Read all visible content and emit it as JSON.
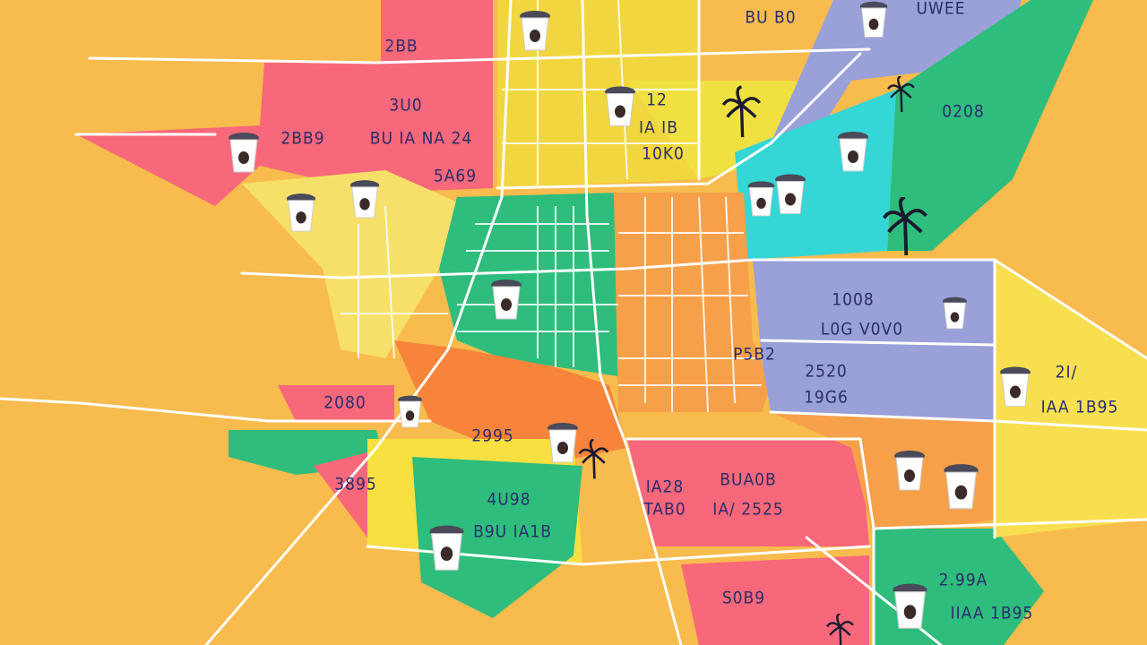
{
  "labels": [
    "2BB",
    "3U0",
    "2BB9",
    "BU IA NA 24",
    "5A69",
    "BU B0",
    "UWEE",
    "12",
    "IA IB",
    "10K0",
    "0208",
    "1008",
    "L0G V0V0",
    "P5B2",
    "2520",
    "19G6",
    "2I/",
    "IAA 1B95",
    "2080",
    "2995",
    "3895",
    "4U98",
    "B9U IA1B",
    "BUA0B",
    "IA28",
    "TAB0",
    "IA/ 2525",
    "S0B9",
    "2.99A",
    "IIAA 1B95"
  ]
}
